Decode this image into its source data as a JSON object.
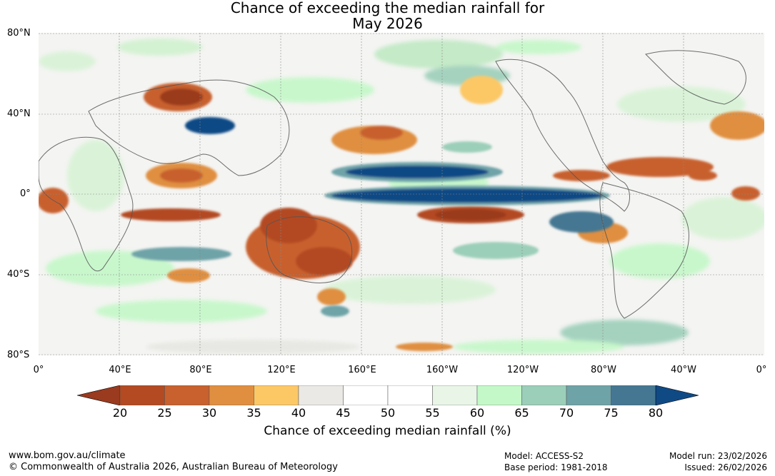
{
  "title": {
    "line1": "Chance of exceeding the median rainfall for",
    "line2": "May 2026"
  },
  "lat_labels": [
    "80°N",
    "40°N",
    "0°",
    "40°S",
    "80°S"
  ],
  "lon_labels": [
    "0°",
    "40°E",
    "80°E",
    "120°E",
    "160°E",
    "160°W",
    "120°W",
    "80°W",
    "40°W",
    "0°"
  ],
  "colorbar": {
    "ticks": [
      "20",
      "25",
      "30",
      "35",
      "40",
      "45",
      "50",
      "55",
      "60",
      "65",
      "70",
      "75",
      "80"
    ],
    "colors": [
      "#9a3a1e",
      "#b34a22",
      "#c8612d",
      "#e08f40",
      "#fcc866",
      "#ebe9e5",
      "#ffffff",
      "#ffffff",
      "#e8f5e7",
      "#c4f8c8",
      "#9ccfba",
      "#6ea3a8",
      "#457792",
      "#104a85"
    ],
    "label": "Chance of exceeding median rainfall (%)"
  },
  "footer": {
    "website": "www.bom.gov.au/climate",
    "copyright": "© Commonwealth of Australia 2026, Australian Bureau of Meteorology",
    "model": "Model: ACCESS-S2",
    "base_period": "Base period: 1981-2018",
    "model_run": "Model run: 23/02/2026",
    "issued": "Issued: 26/02/2026"
  }
}
